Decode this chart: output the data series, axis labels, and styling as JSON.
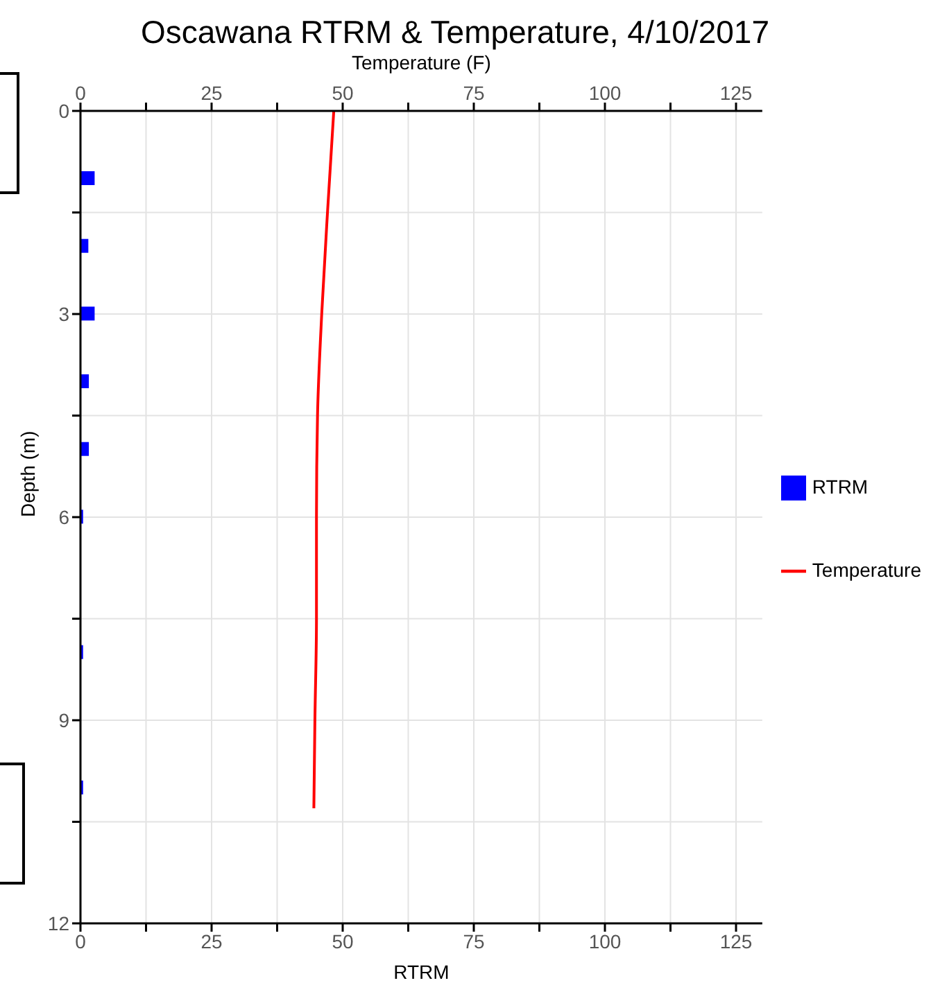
{
  "chart_data": {
    "type": "bar",
    "orientation": "horizontal",
    "title": "Oscawana RTRM & Temperature, 4/10/2017",
    "xlabel": "RTRM",
    "x2label": "Temperature (F)",
    "ylabel": "Depth (m)",
    "series": [
      {
        "name": "RTRM",
        "color": "#0000ff",
        "x": [
          1,
          2,
          3,
          4,
          5,
          6,
          8,
          10
        ],
        "values": [
          2.7,
          1.5,
          2.7,
          1.6,
          1.6,
          0.5,
          0.5,
          0.5
        ]
      },
      {
        "name": "Temperature",
        "type": "line",
        "axis": "x2",
        "color": "#ff0000",
        "x": [
          0,
          1.5,
          3,
          4.5,
          6,
          7.5,
          9,
          10.3
        ],
        "values": [
          48.3,
          47.1,
          46.0,
          45.2,
          45.0,
          45.0,
          44.7,
          44.5
        ]
      }
    ],
    "xlim": [
      0,
      130
    ],
    "xticks": [
      0,
      {
        "value": 12.5,
        "label": null
      },
      25,
      {
        "value": 37.5,
        "label": null
      },
      50,
      {
        "value": 62.5,
        "label": null
      },
      75,
      {
        "value": 87.5,
        "label": null
      },
      100,
      {
        "value": 112.5,
        "label": null
      },
      125
    ],
    "x2lim": [
      0,
      130
    ],
    "x2ticks": [
      0,
      {
        "value": 12.5,
        "label": null
      },
      25,
      {
        "value": 37.5,
        "label": null
      },
      50,
      {
        "value": 62.5,
        "label": null
      },
      75,
      {
        "value": 87.5,
        "label": null
      },
      100,
      {
        "value": 112.5,
        "label": null
      },
      125
    ],
    "ylim": [
      12,
      0
    ],
    "yticks": [
      0,
      {
        "value": 1.5,
        "label": null
      },
      3,
      {
        "value": 4.5,
        "label": null
      },
      6,
      {
        "value": 7.5,
        "label": null
      },
      9,
      {
        "value": 10.5,
        "label": null
      },
      12
    ],
    "grid": true,
    "legend": "right",
    "marker": "none",
    "line_style": "solid"
  }
}
